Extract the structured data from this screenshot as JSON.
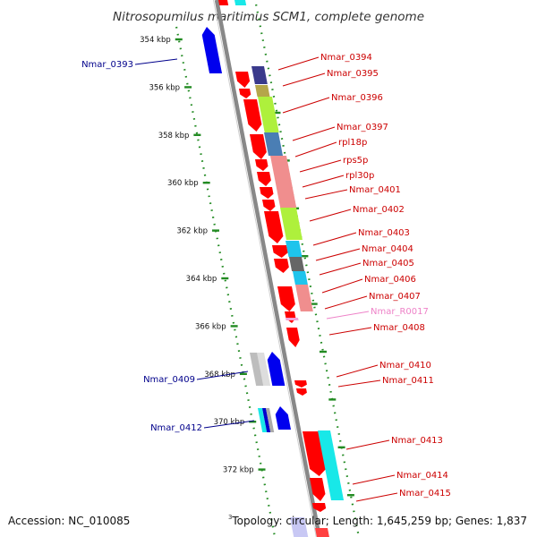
{
  "title": "Nitrosopumilus maritimus SCM1, complete genome",
  "accession_label": "Accession: NC_010085",
  "summary_label": "Topology: circular; Length: 1,645,259 bp; Genes: 1,837",
  "corner_mark": "3",
  "colors": {
    "forward_gene": "#ff0000",
    "reverse_gene": "#0000ee",
    "forward_label": "#cc0000",
    "reverse_label": "#00008b",
    "rna_label": "#ee82c8",
    "backbone": "#888888",
    "ticks": "#228b22"
  },
  "ticks": [
    {
      "label": "354 kbp",
      "kbp": 354
    },
    {
      "label": "356 kbp",
      "kbp": 356
    },
    {
      "label": "358 kbp",
      "kbp": 358
    },
    {
      "label": "360 kbp",
      "kbp": 360
    },
    {
      "label": "362 kbp",
      "kbp": 362
    },
    {
      "label": "364 kbp",
      "kbp": 364
    },
    {
      "label": "366 kbp",
      "kbp": 366
    },
    {
      "label": "368 kbp",
      "kbp": 368
    },
    {
      "label": "370 kbp",
      "kbp": 370
    },
    {
      "label": "372 kbp",
      "kbp": 372
    }
  ],
  "reverse_genes": [
    {
      "label": "Nmar_0393",
      "kbp": 354.4
    },
    {
      "label": "Nmar_0409",
      "kbp": 368.3
    },
    {
      "label": "Nmar_0412",
      "kbp": 370.0
    }
  ],
  "forward_genes": [
    {
      "label": "Nmar_0394",
      "kbp": 355.0,
      "type": "gene"
    },
    {
      "label": "Nmar_0395",
      "kbp": 355.5,
      "type": "gene"
    },
    {
      "label": "Nmar_0396",
      "kbp": 356.4,
      "type": "gene"
    },
    {
      "label": "Nmar_0397",
      "kbp": 357.8,
      "type": "gene"
    },
    {
      "label": "rpl18p",
      "kbp": 358.4,
      "type": "gene"
    },
    {
      "label": "rps5p",
      "kbp": 359.0,
      "type": "gene"
    },
    {
      "label": "rpl30p",
      "kbp": 359.6,
      "type": "gene"
    },
    {
      "label": "Nmar_0401",
      "kbp": 360.2,
      "type": "gene"
    },
    {
      "label": "Nmar_0402",
      "kbp": 361.0,
      "type": "gene"
    },
    {
      "label": "Nmar_0403",
      "kbp": 361.9,
      "type": "gene"
    },
    {
      "label": "Nmar_0404",
      "kbp": 362.4,
      "type": "gene"
    },
    {
      "label": "Nmar_0405",
      "kbp": 362.95,
      "type": "gene"
    },
    {
      "label": "Nmar_0406",
      "kbp": 363.6,
      "type": "gene"
    },
    {
      "label": "Nmar_0407",
      "kbp": 364.4,
      "type": "gene"
    },
    {
      "label": "Nmar_R0017",
      "kbp": 365.0,
      "type": "rna"
    },
    {
      "label": "Nmar_0408",
      "kbp": 365.6,
      "type": "gene"
    },
    {
      "label": "Nmar_0410",
      "kbp": 367.6,
      "type": "gene"
    },
    {
      "label": "Nmar_0411",
      "kbp": 368.2,
      "type": "gene"
    },
    {
      "label": "Nmar_0413",
      "kbp": 370.9,
      "type": "gene"
    },
    {
      "label": "Nmar_0414",
      "kbp": 372.6,
      "type": "gene"
    },
    {
      "label": "Nmar_0415",
      "kbp": 373.3,
      "type": "gene"
    }
  ]
}
